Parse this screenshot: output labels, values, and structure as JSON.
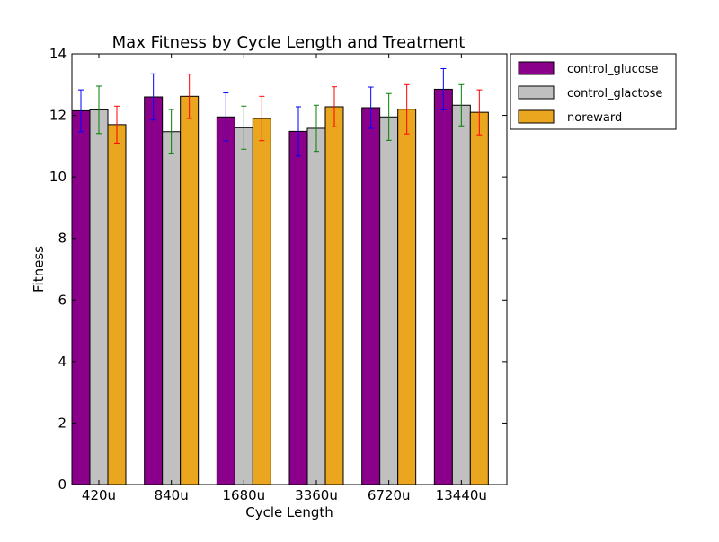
{
  "chart_data": {
    "type": "bar",
    "title": "Max Fitness by Cycle Length and Treatment",
    "xlabel": "Cycle Length",
    "ylabel": "Fitness",
    "ylim": [
      0,
      14
    ],
    "yticks": [
      0,
      2,
      4,
      6,
      8,
      10,
      12,
      14
    ],
    "categories": [
      "420u",
      "840u",
      "1680u",
      "3360u",
      "6720u",
      "13440u"
    ],
    "grid": false,
    "legend_position": "outside top-right",
    "series": [
      {
        "name": "control_glucose",
        "color": "#8b008b",
        "error_color": "#0000ff",
        "values": [
          12.15,
          12.6,
          11.95,
          11.48,
          12.25,
          12.85
        ],
        "errors": [
          0.68,
          0.75,
          0.78,
          0.8,
          0.67,
          0.67
        ]
      },
      {
        "name": "control_glactose",
        "color": "#c0c0c0",
        "error_color": "#008000",
        "values": [
          12.18,
          11.47,
          11.6,
          11.58,
          11.95,
          12.33
        ],
        "errors": [
          0.77,
          0.72,
          0.7,
          0.75,
          0.76,
          0.67
        ]
      },
      {
        "name": "noreward",
        "color": "#eaa61e",
        "error_color": "#ff0000",
        "values": [
          11.7,
          12.62,
          11.9,
          12.28,
          12.2,
          12.1
        ],
        "errors": [
          0.6,
          0.72,
          0.72,
          0.65,
          0.8,
          0.73
        ]
      }
    ]
  }
}
